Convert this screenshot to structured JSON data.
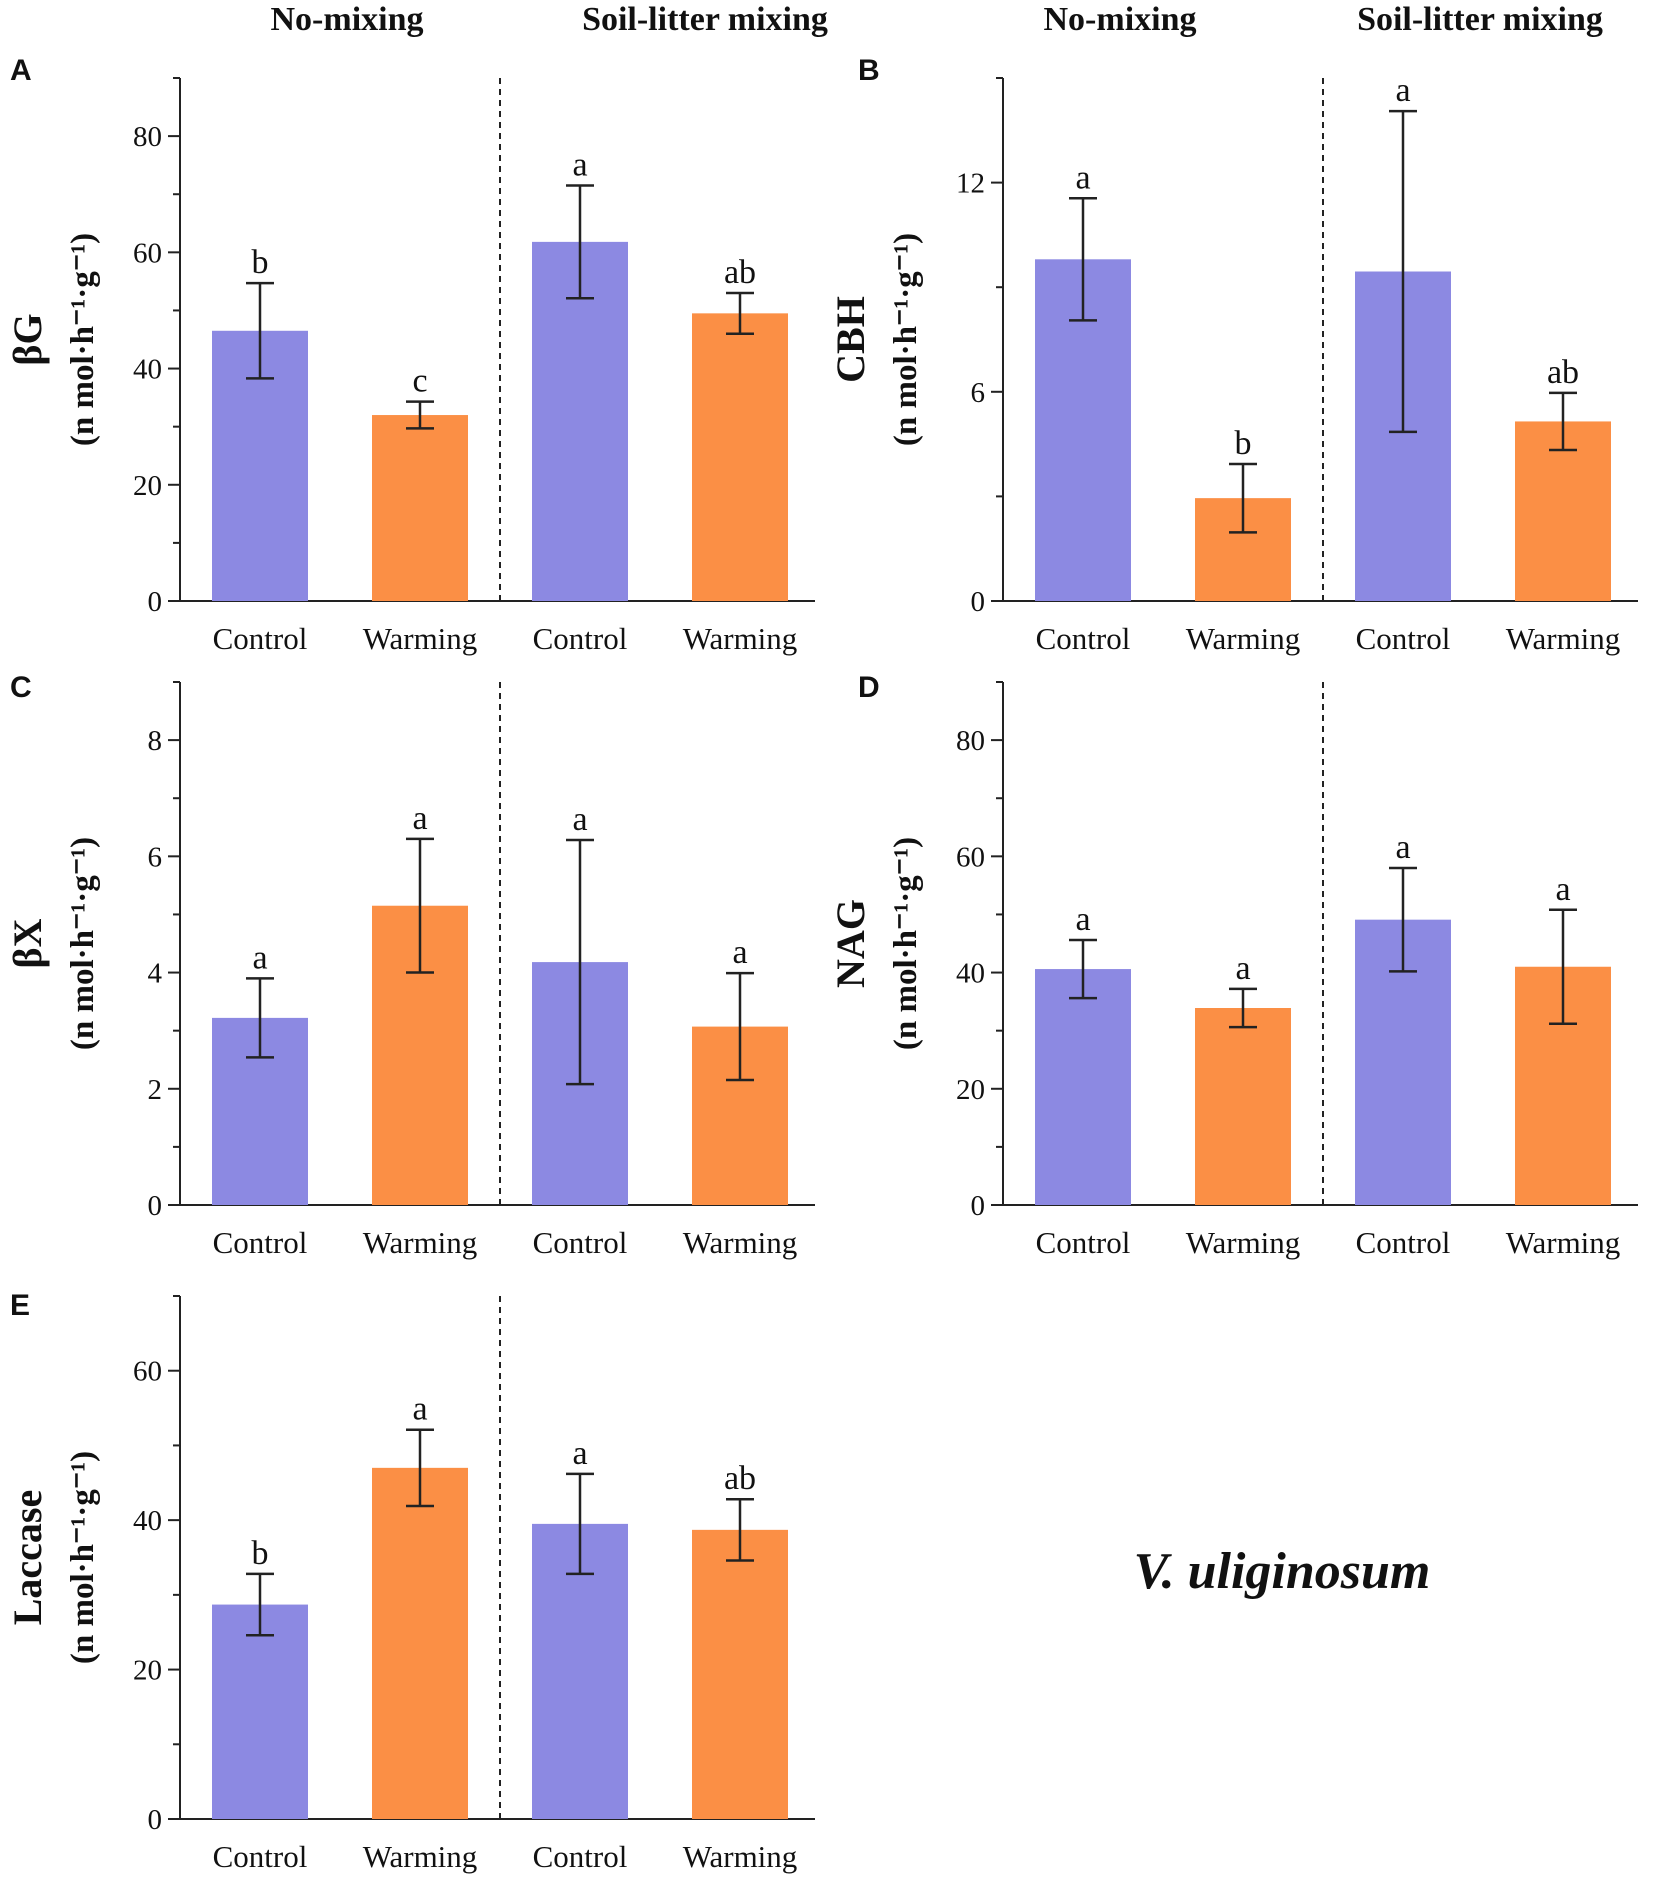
{
  "colors": {
    "control": "#8C89E2",
    "warming": "#FB8F45",
    "axis": "#222222",
    "divider": "#222222"
  },
  "group_titles": [
    "No-mixing",
    "Soil-litter mixing"
  ],
  "species": "V. uliginosum",
  "unit_label": "(n mol·h⁻¹·g⁻¹)",
  "chart_data": [
    {
      "type": "bar",
      "panel": "A",
      "ylabel": "βG",
      "categories": [
        "Control",
        "Warming",
        "Control",
        "Warming"
      ],
      "groups": [
        "No-mixing",
        "No-mixing",
        "Soil-litter mixing",
        "Soil-litter mixing"
      ],
      "values": [
        46.5,
        32.0,
        61.8,
        49.5
      ],
      "errors": [
        8.2,
        2.3,
        9.7,
        3.5
      ],
      "letters": [
        "b",
        "c",
        "a",
        "ab"
      ],
      "ylim": [
        0,
        90
      ],
      "major_ticks": [
        0,
        20,
        40,
        60,
        80
      ]
    },
    {
      "type": "bar",
      "panel": "B",
      "ylabel": "CBH",
      "categories": [
        "Control",
        "Warming",
        "Control",
        "Warming"
      ],
      "groups": [
        "No-mixing",
        "No-mixing",
        "Soil-litter mixing",
        "Soil-litter mixing"
      ],
      "values": [
        9.8,
        2.95,
        9.45,
        5.15
      ],
      "errors": [
        1.75,
        0.98,
        4.6,
        0.82
      ],
      "letters": [
        "a",
        "b",
        "a",
        "ab"
      ],
      "ylim": [
        0,
        15
      ],
      "major_ticks": [
        0,
        6,
        12
      ]
    },
    {
      "type": "bar",
      "panel": "C",
      "ylabel": "βX",
      "categories": [
        "Control",
        "Warming",
        "Control",
        "Warming"
      ],
      "groups": [
        "No-mixing",
        "No-mixing",
        "Soil-litter mixing",
        "Soil-litter mixing"
      ],
      "values": [
        3.22,
        5.15,
        4.18,
        3.07
      ],
      "errors": [
        0.68,
        1.15,
        2.1,
        0.92
      ],
      "letters": [
        "a",
        "a",
        "a",
        "a"
      ],
      "ylim": [
        0,
        9
      ],
      "major_ticks": [
        0,
        2,
        4,
        6,
        8
      ]
    },
    {
      "type": "bar",
      "panel": "D",
      "ylabel": "NAG",
      "categories": [
        "Control",
        "Warming",
        "Control",
        "Warming"
      ],
      "groups": [
        "No-mixing",
        "No-mixing",
        "Soil-litter mixing",
        "Soil-litter mixing"
      ],
      "values": [
        40.6,
        33.9,
        49.1,
        41.0
      ],
      "errors": [
        5.0,
        3.3,
        8.9,
        9.8
      ],
      "letters": [
        "a",
        "a",
        "a",
        "a"
      ],
      "ylim": [
        0,
        90
      ],
      "major_ticks": [
        0,
        20,
        40,
        60,
        80
      ]
    },
    {
      "type": "bar",
      "panel": "E",
      "ylabel": "Laccase",
      "categories": [
        "Control",
        "Warming",
        "Control",
        "Warming"
      ],
      "groups": [
        "No-mixing",
        "No-mixing",
        "Soil-litter mixing",
        "Soil-litter mixing"
      ],
      "values": [
        28.7,
        47.0,
        39.5,
        38.7
      ],
      "errors": [
        4.1,
        5.1,
        6.7,
        4.1
      ],
      "letters": [
        "b",
        "a",
        "a",
        "ab"
      ],
      "ylim": [
        0,
        70
      ],
      "major_ticks": [
        0,
        20,
        40,
        60
      ]
    }
  ]
}
